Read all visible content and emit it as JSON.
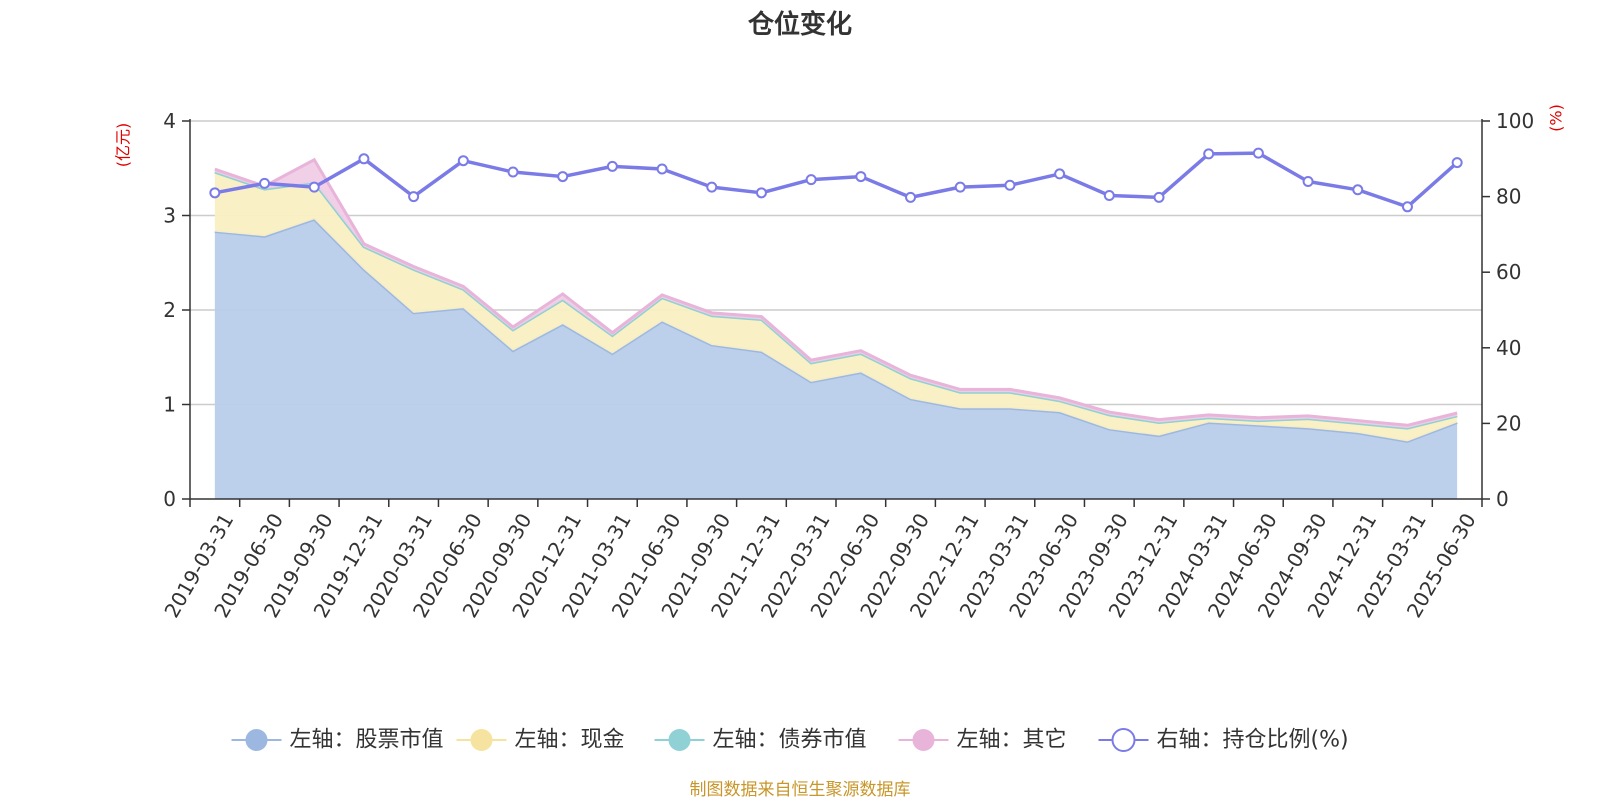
{
  "chart_data": {
    "type": "area",
    "title": "仓位变化",
    "left_axis_unit": "(亿元)",
    "right_axis_unit": "(%)",
    "ylim_left": [
      0,
      4
    ],
    "yticks_left": [
      0,
      1,
      2,
      3,
      4
    ],
    "ylim_right": [
      0,
      100
    ],
    "yticks_right": [
      0,
      20,
      40,
      60,
      80,
      100
    ],
    "grid": true,
    "legend_position": "bottom",
    "categories": [
      "2019-03-31",
      "2019-06-30",
      "2019-09-30",
      "2019-12-31",
      "2020-03-31",
      "2020-06-30",
      "2020-09-30",
      "2020-12-31",
      "2021-03-31",
      "2021-06-30",
      "2021-09-30",
      "2021-12-31",
      "2022-03-31",
      "2022-06-30",
      "2022-09-30",
      "2022-12-31",
      "2023-03-31",
      "2023-06-30",
      "2023-09-30",
      "2023-12-31",
      "2024-03-31",
      "2024-06-30",
      "2024-09-30",
      "2024-12-31",
      "2025-03-31",
      "2025-06-30"
    ],
    "series": [
      {
        "name": "左轴：股票市值",
        "axis": "left",
        "stack": true,
        "color": "#9db8e0",
        "fill": "#b8cdeb",
        "values": [
          2.83,
          2.78,
          2.96,
          2.43,
          1.97,
          2.02,
          1.57,
          1.85,
          1.54,
          1.88,
          1.63,
          1.56,
          1.24,
          1.34,
          1.06,
          0.96,
          0.96,
          0.92,
          0.74,
          0.67,
          0.81,
          0.78,
          0.75,
          0.7,
          0.61,
          0.81
        ]
      },
      {
        "name": "左轴：现金",
        "axis": "left",
        "stack": true,
        "color": "#f7e3a0",
        "fill": "#faefc3",
        "values": [
          0.63,
          0.5,
          0.39,
          0.24,
          0.46,
          0.2,
          0.22,
          0.26,
          0.19,
          0.25,
          0.31,
          0.34,
          0.2,
          0.2,
          0.22,
          0.17,
          0.17,
          0.12,
          0.15,
          0.14,
          0.05,
          0.05,
          0.1,
          0.1,
          0.14,
          0.07
        ]
      },
      {
        "name": "左轴：债券市值",
        "axis": "left",
        "stack": true,
        "color": "#8fd1d4",
        "fill": "#b9e4e6",
        "values": [
          0,
          0,
          0,
          0,
          0,
          0,
          0,
          0,
          0,
          0,
          0,
          0,
          0,
          0,
          0,
          0,
          0,
          0,
          0,
          0,
          0,
          0,
          0,
          0,
          0,
          0
        ]
      },
      {
        "name": "左轴：其它",
        "axis": "left",
        "stack": true,
        "color": "#e8b4da",
        "fill": "#f0cde6",
        "values": [
          0.03,
          0.03,
          0.24,
          0.03,
          0.03,
          0.03,
          0.03,
          0.06,
          0.03,
          0.03,
          0.03,
          0.03,
          0.03,
          0.03,
          0.03,
          0.03,
          0.03,
          0.03,
          0.03,
          0.03,
          0.03,
          0.03,
          0.03,
          0.03,
          0.03,
          0.03
        ]
      },
      {
        "name": "右轴：持仓比例(%)",
        "axis": "right",
        "type": "line",
        "color": "#7b7be8",
        "values": [
          81,
          83.5,
          82.5,
          90,
          80,
          89.5,
          86.5,
          85.3,
          88,
          87.3,
          82.5,
          81,
          84.5,
          85.3,
          79.8,
          82.5,
          83,
          86,
          80.3,
          79.8,
          91.3,
          91.5,
          84,
          81.8,
          77.3,
          89
        ]
      }
    ],
    "source": "制图数据来自恒生聚源数据库"
  }
}
